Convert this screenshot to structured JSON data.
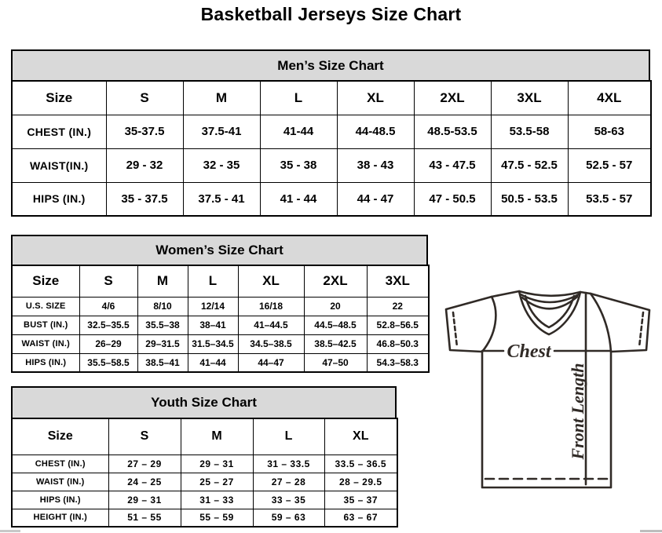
{
  "page": {
    "title": "Basketball Jerseys Size Chart"
  },
  "tables": {
    "men": {
      "title": "Men’s Size Chart",
      "columns": [
        "Size",
        "S",
        "M",
        "L",
        "XL",
        "2XL",
        "3XL",
        "4XL"
      ],
      "rows": [
        [
          "CHEST (IN.)",
          "35-37.5",
          "37.5-41",
          "41-44",
          "44-48.5",
          "48.5-53.5",
          "53.5-58",
          "58-63"
        ],
        [
          "WAIST(IN.)",
          "29 - 32",
          "32 - 35",
          "35 - 38",
          "38 - 43",
          "43 - 47.5",
          "47.5 - 52.5",
          "52.5 - 57"
        ],
        [
          "HIPS (IN.)",
          "35 - 37.5",
          "37.5 - 41",
          "41 - 44",
          "44 - 47",
          "47 - 50.5",
          "50.5 - 53.5",
          "53.5 - 57"
        ]
      ]
    },
    "women": {
      "title": "Women’s Size Chart",
      "columns": [
        "Size",
        "S",
        "M",
        "L",
        "XL",
        "2XL",
        "3XL"
      ],
      "rows": [
        [
          "U.S. SIZE",
          "4/6",
          "8/10",
          "12/14",
          "16/18",
          "20",
          "22"
        ],
        [
          "BUST (IN.)",
          "32.5–35.5",
          "35.5–38",
          "38–41",
          "41–44.5",
          "44.5–48.5",
          "52.8–56.5"
        ],
        [
          "WAIST (IN.)",
          "26–29",
          "29–31.5",
          "31.5–34.5",
          "34.5–38.5",
          "38.5–42.5",
          "46.8–50.3"
        ],
        [
          "HIPS (IN.)",
          "35.5–58.5",
          "38.5–41",
          "41–44",
          "44–47",
          "47–50",
          "54.3–58.3"
        ]
      ]
    },
    "youth": {
      "title": "Youth Size Chart",
      "columns": [
        "Size",
        "S",
        "M",
        "L",
        "XL"
      ],
      "rows": [
        [
          "CHEST (IN.)",
          "27 – 29",
          "29 – 31",
          "31 – 33.5",
          "33.5 – 36.5"
        ],
        [
          "WAIST (IN.)",
          "24 – 25",
          "25 – 27",
          "27 – 28",
          "28 – 29.5"
        ],
        [
          "HIPS (IN.)",
          "29 – 31",
          "31 – 33",
          "33 – 35",
          "35 – 37"
        ],
        [
          "HEIGHT (IN.)",
          "51 – 55",
          "55 – 59",
          "59 – 63",
          "63 – 67"
        ]
      ]
    }
  },
  "diagram": {
    "chest_label": "Chest",
    "front_length_label": "Front Length"
  },
  "colors": {
    "table_header_bg": "#d9d9d9",
    "table_border": "#000000",
    "jersey_line": "#302a26"
  }
}
